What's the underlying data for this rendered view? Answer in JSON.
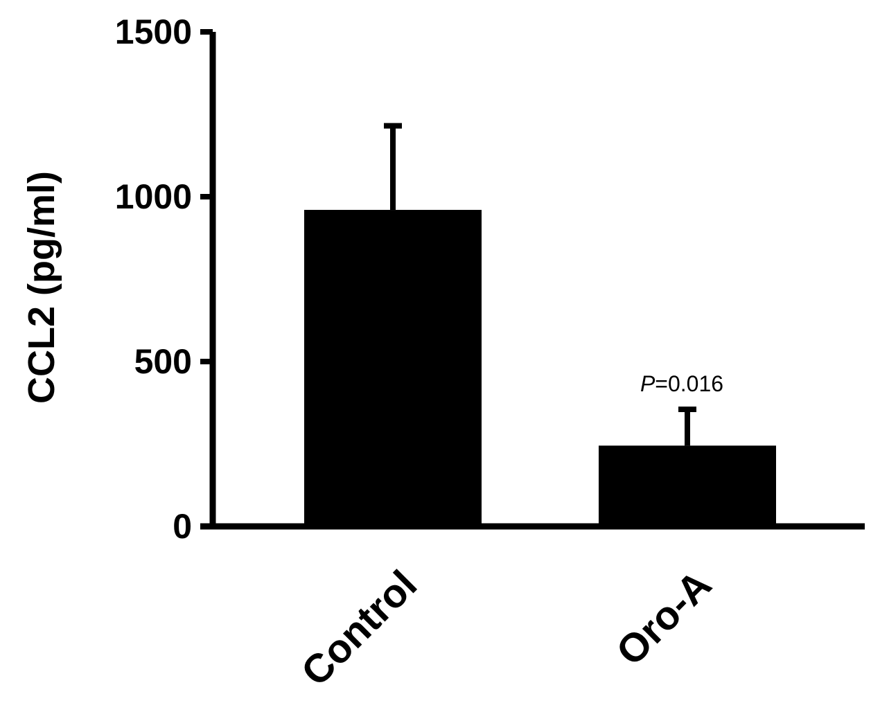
{
  "chart_data": {
    "type": "bar",
    "title": "",
    "xlabel": "",
    "ylabel": "CCL2 (pg/ml)",
    "categories": [
      "Control",
      "Oro-A"
    ],
    "values": [
      960,
      245
    ],
    "errors": [
      255,
      110
    ],
    "ylim": [
      0,
      1500
    ],
    "yticks": [
      0,
      500,
      1000,
      1500
    ],
    "ytick_labels": [
      "0",
      "500",
      "1000",
      "1500"
    ],
    "grid": false,
    "legend": "none",
    "bar_color": "#000000",
    "annotations": [
      {
        "category": "Oro-A",
        "p_symbol": "P",
        "p_value": "=0.016"
      }
    ]
  }
}
